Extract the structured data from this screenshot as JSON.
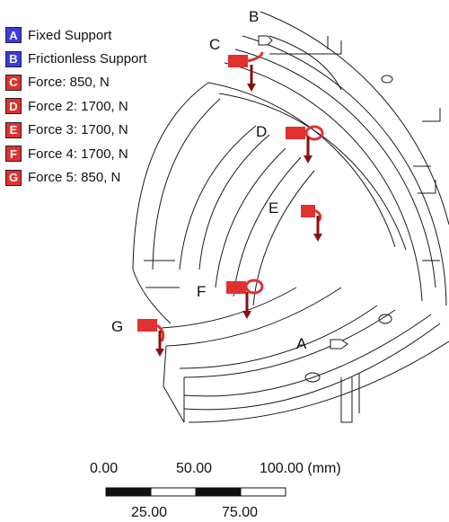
{
  "legend": {
    "items": [
      {
        "letter": "A",
        "label": "Fixed Support",
        "color": "#3b3be0"
      },
      {
        "letter": "B",
        "label": "Frictionless Support",
        "color": "#3b3be0"
      },
      {
        "letter": "C",
        "label": "Force: 850, N",
        "color": "#e03030"
      },
      {
        "letter": "D",
        "label": "Force 2: 1700, N",
        "color": "#e03030"
      },
      {
        "letter": "E",
        "label": "Force 3: 1700, N",
        "color": "#e03030"
      },
      {
        "letter": "F",
        "label": "Force 4: 1700, N",
        "color": "#e03030"
      },
      {
        "letter": "G",
        "label": "Force 5: 850, N",
        "color": "#e03030"
      }
    ]
  },
  "callouts": {
    "A": "A",
    "B": "B",
    "C": "C",
    "D": "D",
    "E": "E",
    "F": "F",
    "G": "G"
  },
  "scale_bar": {
    "top_labels": [
      "0.00",
      "50.00",
      "100.00 (mm)"
    ],
    "bottom_labels": [
      "25.00",
      "75.00"
    ],
    "fill_dark": "#111111",
    "fill_light": "#ffffff"
  },
  "colors": {
    "outline": "#1a1a1a",
    "force": "#e03030",
    "force_dark": "#8a1010",
    "support": "#3b3be0"
  }
}
